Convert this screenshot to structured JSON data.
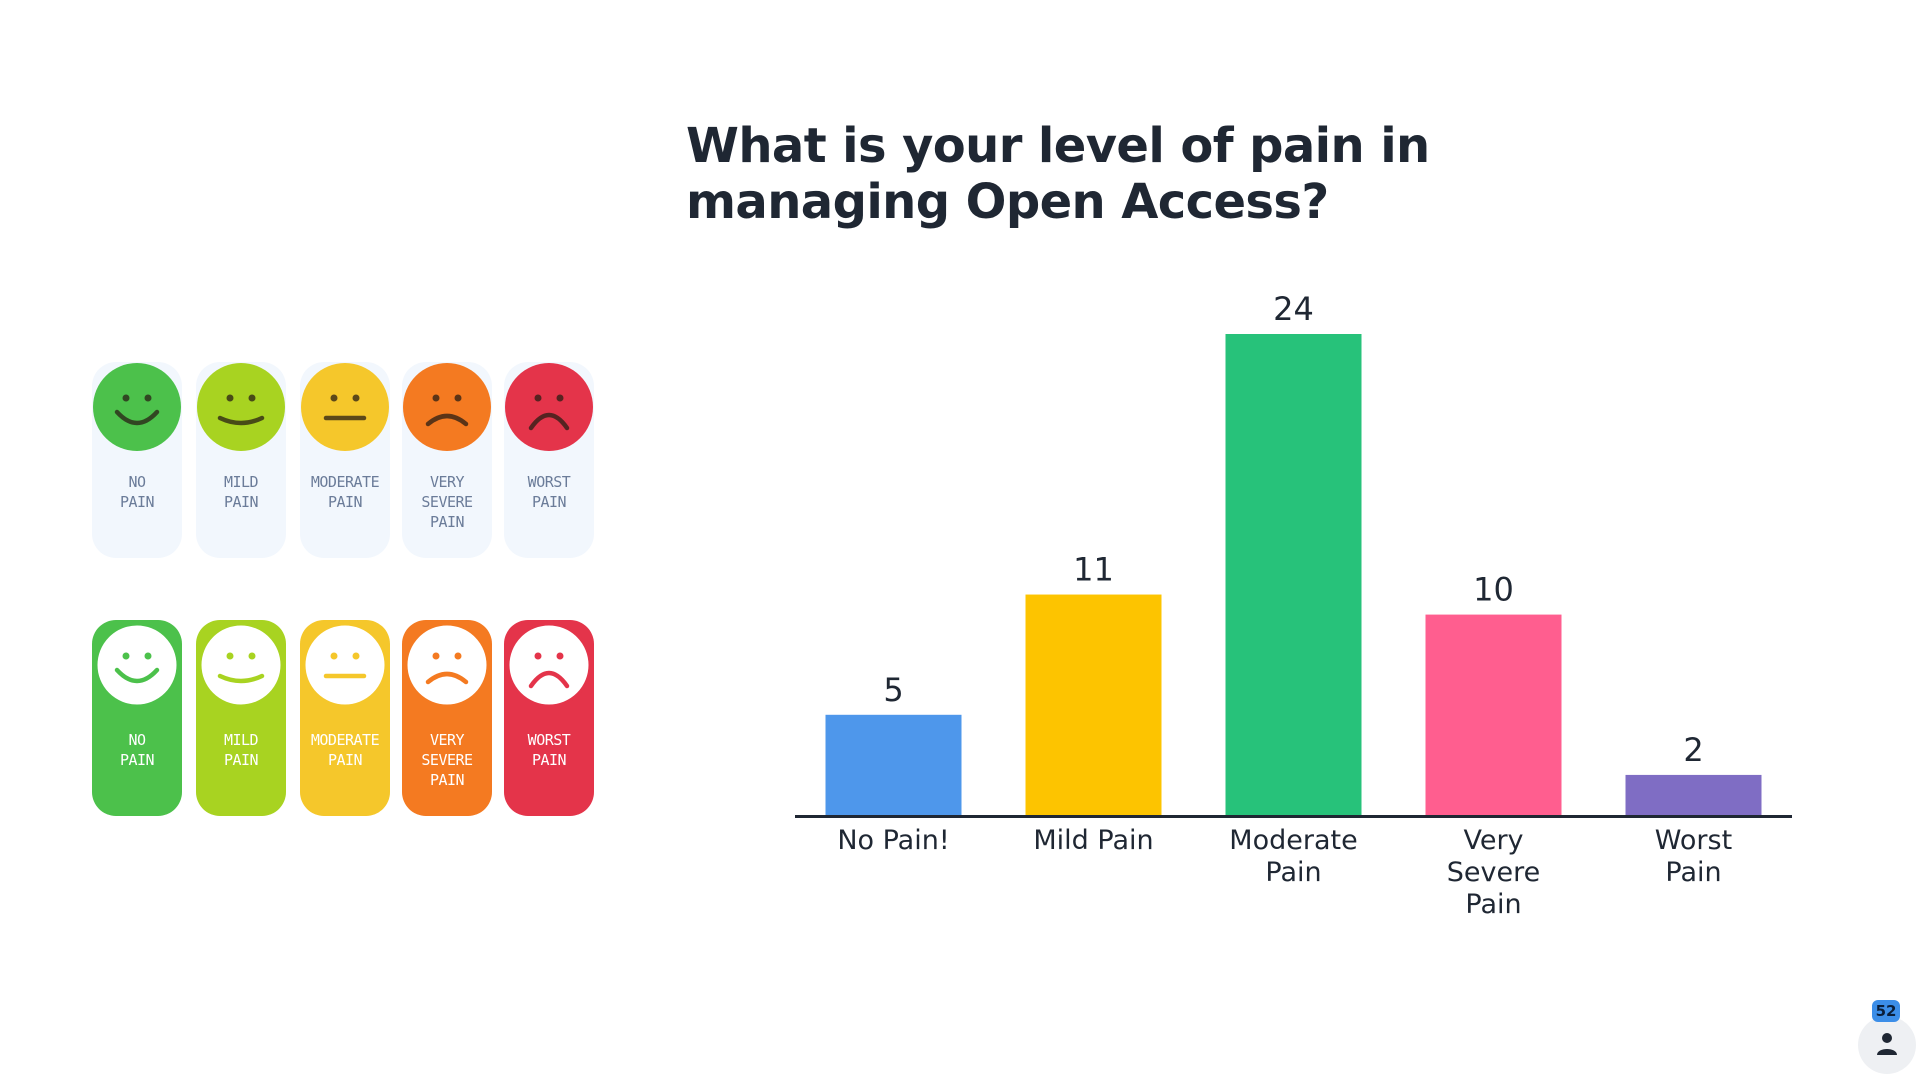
{
  "slide": {
    "title": "What is your level of pain in managing Open Access?",
    "participant_count": "52"
  },
  "faces": {
    "labels": [
      "NO\nPAIN",
      "MILD\nPAIN",
      "MODERATE\nPAIN",
      "VERY\nSEVERE\nPAIN",
      "WORST\nPAIN"
    ],
    "colors": [
      "#4cc14b",
      "#a8d321",
      "#f5c72b",
      "#f47a21",
      "#e4344a"
    ],
    "moods": [
      "smile",
      "slight-smile",
      "neutral",
      "frown",
      "sad"
    ]
  },
  "chart_data": {
    "type": "bar",
    "categories": [
      "No Pain!",
      "Mild Pain",
      "Moderate Pain",
      "Very Severe Pain",
      "Worst Pain"
    ],
    "values": [
      5,
      11,
      24,
      10,
      2
    ],
    "colors": [
      "#4e97eb",
      "#fdc400",
      "#27c27a",
      "#ff5e8f",
      "#7f6dc4"
    ],
    "ylim": [
      0,
      24
    ],
    "xlabel": "",
    "ylabel": "",
    "grid": false
  }
}
